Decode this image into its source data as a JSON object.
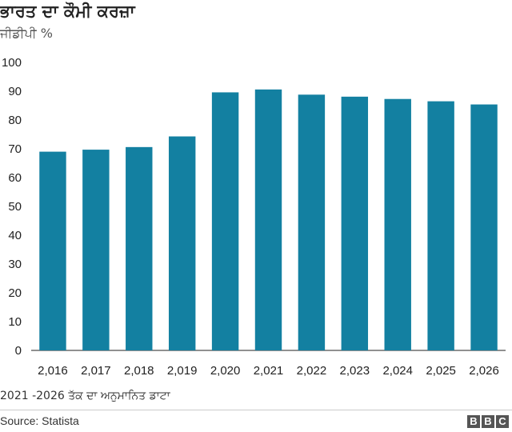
{
  "chart_data": {
    "type": "bar",
    "title": "ਭਾਰਤ ਦਾ ਕੌਮੀ ਕਰਜ਼ਾ",
    "subtitle": "ਜੀਡੀਪੀ %",
    "categories": [
      "2,016",
      "2,017",
      "2,018",
      "2,019",
      "2,020",
      "2,021",
      "2,022",
      "2,023",
      "2,024",
      "2,025",
      "2,026"
    ],
    "values": [
      69,
      69.7,
      70.6,
      74.3,
      89.6,
      90.6,
      88.8,
      88.1,
      87.3,
      86.5,
      85.4
    ],
    "ylim": [
      0,
      100
    ],
    "yticks": [
      0,
      10,
      20,
      30,
      40,
      50,
      60,
      70,
      80,
      90,
      100
    ],
    "grid": false,
    "bar_color": "#1380a1"
  },
  "footnote": "2021 -2026 ਤੱਕ ਦਾ ਅਨੁਮਾਨਿਤ ਡਾਟਾ",
  "source": "Source: Statista",
  "logo": [
    "B",
    "B",
    "C"
  ]
}
